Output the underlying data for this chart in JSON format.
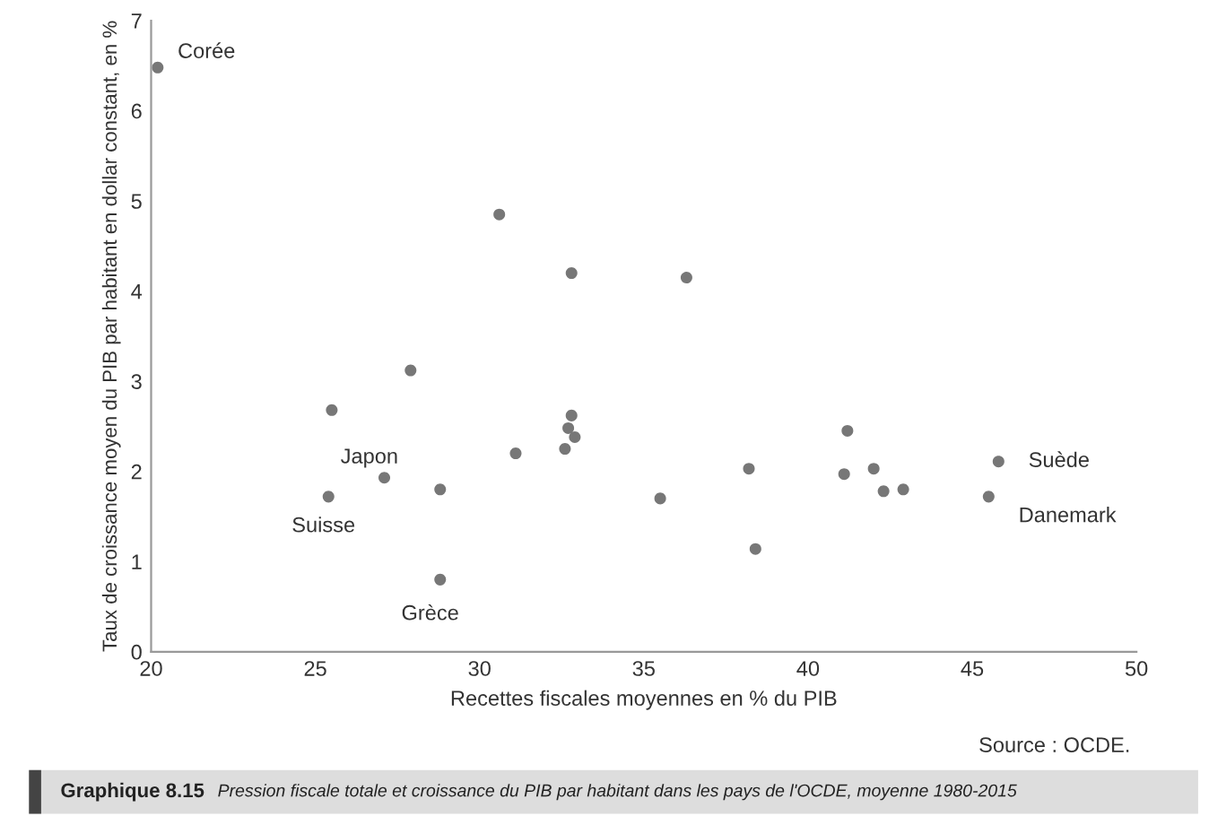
{
  "chart_data": {
    "type": "scatter",
    "title": "Graphique 8.15",
    "subtitle": "Pression fiscale totale et croissance du PIB par habitant dans les pays de l'OCDE, moyenne 1980-2015",
    "xlabel": "Recettes fiscales moyennes en % du PIB",
    "ylabel": "Taux de croissance moyen du PIB par habitant en dollar constant, en %",
    "x": [
      20.2,
      30.6,
      32.8,
      36.3,
      27.9,
      25.5,
      32.8,
      32.7,
      32.9,
      31.1,
      32.6,
      27.1,
      28.8,
      25.4,
      28.8,
      35.5,
      38.2,
      38.4,
      41.2,
      41.1,
      42.0,
      42.3,
      42.9,
      45.8,
      45.5
    ],
    "values": [
      6.48,
      4.85,
      4.2,
      4.15,
      3.12,
      2.68,
      2.62,
      2.48,
      2.38,
      2.2,
      2.25,
      1.93,
      1.8,
      1.72,
      0.8,
      1.7,
      2.03,
      1.14,
      2.45,
      1.97,
      2.03,
      1.78,
      1.8,
      2.11,
      1.72
    ],
    "color": "#777777",
    "marker": "circle",
    "xlim": [
      20,
      50
    ],
    "xticks": [
      20,
      25,
      30,
      35,
      40,
      45,
      50
    ],
    "ylim": [
      0,
      7
    ],
    "yticks": [
      0,
      1,
      2,
      3,
      4,
      5,
      6,
      7
    ],
    "grid": false,
    "annotations": [
      {
        "text": "Corée",
        "x": 20.2,
        "y": 6.48
      },
      {
        "text": "Japon",
        "x": 27.1,
        "y": 1.93
      },
      {
        "text": "Suisse",
        "x": 25.4,
        "y": 1.72
      },
      {
        "text": "Grèce",
        "x": 28.8,
        "y": 0.8
      },
      {
        "text": "Suède",
        "x": 45.8,
        "y": 2.11
      },
      {
        "text": "Danemark",
        "x": 45.5,
        "y": 1.72
      },
      "Source : OCDE."
    ]
  }
}
